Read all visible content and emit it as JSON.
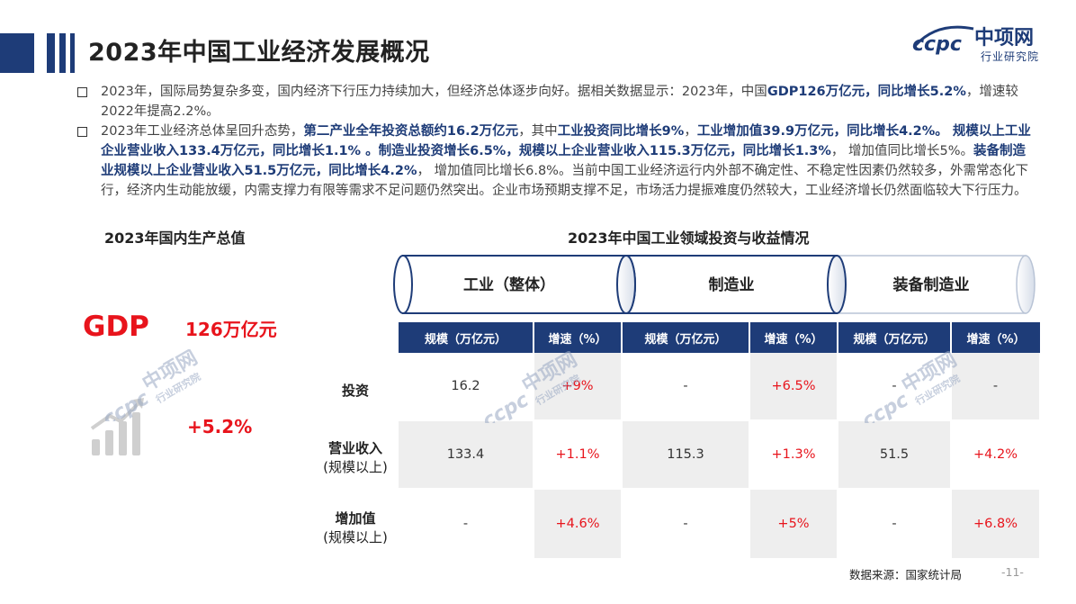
{
  "title": "2023年中国工业经济发展概况",
  "logo": {
    "mark": "ccpc",
    "name": "中项网",
    "sub": "行业研究院"
  },
  "bullets": {
    "b1_parts": [
      {
        "t": "2023年，国际局势复杂多变，国内经济下行压力持续加大，但经济总体逐步向好。据相关数据显示：2023年，中国",
        "b": false
      },
      {
        "t": "GDP126万亿元，同比增长5.2%",
        "b": true
      },
      {
        "t": "，增速较2022年提高2.2%。",
        "b": false
      }
    ],
    "b2_parts": [
      {
        "t": "2023年工业经济总体呈回升态势，",
        "b": false
      },
      {
        "t": "第二产业全年投资总额约16.2万亿元",
        "b": true
      },
      {
        "t": "，其中",
        "b": false
      },
      {
        "t": "工业投资同比增长9%",
        "b": true
      },
      {
        "t": "，",
        "b": false
      },
      {
        "t": "工业增加值39.9万亿元，同比增长4.2%。 规模以上工业企业营业收入133.4万亿元，同比增长1.1% 。制造业投资增长6.5%，规模以上企业营业收入115.3万亿元，同比增长1.3%",
        "b": true
      },
      {
        "t": "， 增加值同比增长5%。",
        "b": false
      },
      {
        "t": "装备制造业规模以上企业营业收入51.5万亿元，同比增长4.2%",
        "b": true
      },
      {
        "t": "， 增加值同比增长6.8%。当前中国工业经济运行内外部不确定性、不稳定性因素仍然较多，外需常态化下行，经济内生动能放缓，内需支撑力有限等需求不足问题仍然突出。企业市场预期支撑不足，市场活力提振难度仍然较大，工业经济增长仍然面临较大下行压力。",
        "b": false
      }
    ]
  },
  "gdp_section": {
    "heading": "2023年国内生产总值",
    "label": "GDP",
    "value": "126万亿元",
    "growth": "+5.2%"
  },
  "invest_section": {
    "heading": "2023年中国工业领域投资与收益情况",
    "groups": [
      "工业（整体）",
      "制造业",
      "装备制造业"
    ],
    "columns": [
      "规模（万亿元）",
      "增速（%）",
      "规模（万亿元）",
      "增速（%）",
      "规模（万亿元）",
      "增速（%）"
    ],
    "rows": [
      {
        "label": "投资",
        "sub": "",
        "cells": [
          "16.2",
          "+9%",
          "-",
          "+6.5%",
          "-",
          "-"
        ]
      },
      {
        "label": "营业收入",
        "sub": "(规模以上)",
        "cells": [
          "133.4",
          "+1.1%",
          "115.3",
          "+1.3%",
          "51.5",
          "+4.2%"
        ]
      },
      {
        "label": "增加值",
        "sub": "(规模以上)",
        "cells": [
          "-",
          "+4.6%",
          "-",
          "+5%",
          "-",
          "+6.8%"
        ]
      }
    ]
  },
  "footer": {
    "source": "数据来源：国家统计局",
    "page": "-11-"
  },
  "colors": {
    "navy": "#1e3c78",
    "red": "#e8141c",
    "shade": "#eeeeee"
  }
}
